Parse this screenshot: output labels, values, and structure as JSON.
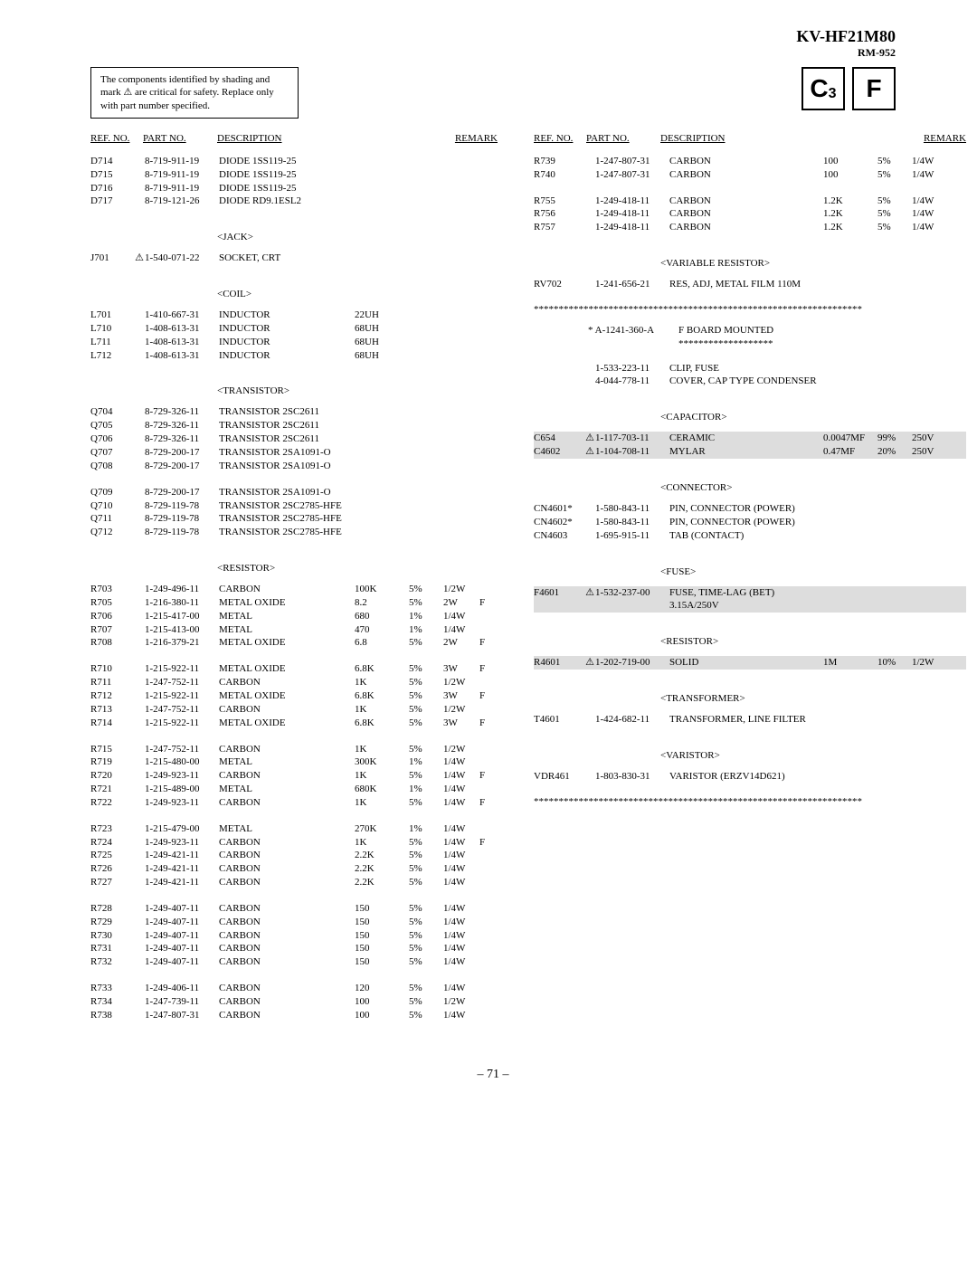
{
  "header": {
    "model": "KV-HF21M80",
    "subtitle": "RM-952"
  },
  "notice": "The components identified by shading and mark ⚠ are critical for safety. Replace only with part number specified.",
  "badges": [
    "C",
    "3",
    "F"
  ],
  "colheads": {
    "ref": "REF. NO.",
    "part": "PART NO.",
    "desc": "DESCRIPTION",
    "remark": "REMARK"
  },
  "page": "– 71 –",
  "warn": "⚠",
  "left": [
    {
      "rows": [
        [
          "D714",
          "",
          "8-719-911-19",
          "DIODE 1SS119-25",
          "",
          "",
          "",
          ""
        ],
        [
          "D715",
          "",
          "8-719-911-19",
          "DIODE 1SS119-25",
          "",
          "",
          "",
          ""
        ],
        [
          "D716",
          "",
          "8-719-911-19",
          "DIODE 1SS119-25",
          "",
          "",
          "",
          ""
        ],
        [
          "D717",
          "",
          "8-719-121-26",
          "DIODE RD9.1ESL2",
          "",
          "",
          "",
          ""
        ]
      ]
    },
    {
      "title": "<JACK>"
    },
    {
      "rows": [
        [
          "J701",
          "⚠",
          "1-540-071-22",
          "SOCKET, CRT",
          "",
          "",
          "",
          ""
        ]
      ]
    },
    {
      "title": "<COIL>"
    },
    {
      "rows": [
        [
          "L701",
          "",
          "1-410-667-31",
          "INDUCTOR",
          "22UH",
          "",
          "",
          ""
        ],
        [
          "L710",
          "",
          "1-408-613-31",
          "INDUCTOR",
          "68UH",
          "",
          "",
          ""
        ],
        [
          "L711",
          "",
          "1-408-613-31",
          "INDUCTOR",
          "68UH",
          "",
          "",
          ""
        ],
        [
          "L712",
          "",
          "1-408-613-31",
          "INDUCTOR",
          "68UH",
          "",
          "",
          ""
        ]
      ]
    },
    {
      "title": "<TRANSISTOR>"
    },
    {
      "rows": [
        [
          "Q704",
          "",
          "8-729-326-11",
          "TRANSISTOR 2SC2611",
          "",
          "",
          "",
          ""
        ],
        [
          "Q705",
          "",
          "8-729-326-11",
          "TRANSISTOR 2SC2611",
          "",
          "",
          "",
          ""
        ],
        [
          "Q706",
          "",
          "8-729-326-11",
          "TRANSISTOR 2SC2611",
          "",
          "",
          "",
          ""
        ],
        [
          "Q707",
          "",
          "8-729-200-17",
          "TRANSISTOR 2SA1091-O",
          "",
          "",
          "",
          ""
        ],
        [
          "Q708",
          "",
          "8-729-200-17",
          "TRANSISTOR 2SA1091-O",
          "",
          "",
          "",
          ""
        ]
      ]
    },
    {
      "rows": [
        [
          "Q709",
          "",
          "8-729-200-17",
          "TRANSISTOR 2SA1091-O",
          "",
          "",
          "",
          ""
        ],
        [
          "Q710",
          "",
          "8-729-119-78",
          "TRANSISTOR 2SC2785-HFE",
          "",
          "",
          "",
          ""
        ],
        [
          "Q711",
          "",
          "8-729-119-78",
          "TRANSISTOR 2SC2785-HFE",
          "",
          "",
          "",
          ""
        ],
        [
          "Q712",
          "",
          "8-729-119-78",
          "TRANSISTOR 2SC2785-HFE",
          "",
          "",
          "",
          ""
        ]
      ]
    },
    {
      "title": "<RESISTOR>"
    },
    {
      "rows": [
        [
          "R703",
          "",
          "1-249-496-11",
          "CARBON",
          "100K",
          "5%",
          "1/2W",
          ""
        ],
        [
          "R705",
          "",
          "1-216-380-11",
          "METAL OXIDE",
          "8.2",
          "5%",
          "2W",
          "F"
        ],
        [
          "R706",
          "",
          "1-215-417-00",
          "METAL",
          "680",
          "1%",
          "1/4W",
          ""
        ],
        [
          "R707",
          "",
          "1-215-413-00",
          "METAL",
          "470",
          "1%",
          "1/4W",
          ""
        ],
        [
          "R708",
          "",
          "1-216-379-21",
          "METAL OXIDE",
          "6.8",
          "5%",
          "2W",
          "F"
        ]
      ]
    },
    {
      "rows": [
        [
          "R710",
          "",
          "1-215-922-11",
          "METAL OXIDE",
          "6.8K",
          "5%",
          "3W",
          "F"
        ],
        [
          "R711",
          "",
          "1-247-752-11",
          "CARBON",
          "1K",
          "5%",
          "1/2W",
          ""
        ],
        [
          "R712",
          "",
          "1-215-922-11",
          "METAL OXIDE",
          "6.8K",
          "5%",
          "3W",
          "F"
        ],
        [
          "R713",
          "",
          "1-247-752-11",
          "CARBON",
          "1K",
          "5%",
          "1/2W",
          ""
        ],
        [
          "R714",
          "",
          "1-215-922-11",
          "METAL OXIDE",
          "6.8K",
          "5%",
          "3W",
          "F"
        ]
      ]
    },
    {
      "rows": [
        [
          "R715",
          "",
          "1-247-752-11",
          "CARBON",
          "1K",
          "5%",
          "1/2W",
          ""
        ],
        [
          "R719",
          "",
          "1-215-480-00",
          "METAL",
          "300K",
          "1%",
          "1/4W",
          ""
        ],
        [
          "R720",
          "",
          "1-249-923-11",
          "CARBON",
          "1K",
          "5%",
          "1/4W",
          "F"
        ],
        [
          "R721",
          "",
          "1-215-489-00",
          "METAL",
          "680K",
          "1%",
          "1/4W",
          ""
        ],
        [
          "R722",
          "",
          "1-249-923-11",
          "CARBON",
          "1K",
          "5%",
          "1/4W",
          "F"
        ]
      ]
    },
    {
      "rows": [
        [
          "R723",
          "",
          "1-215-479-00",
          "METAL",
          "270K",
          "1%",
          "1/4W",
          ""
        ],
        [
          "R724",
          "",
          "1-249-923-11",
          "CARBON",
          "1K",
          "5%",
          "1/4W",
          "F"
        ],
        [
          "R725",
          "",
          "1-249-421-11",
          "CARBON",
          "2.2K",
          "5%",
          "1/4W",
          ""
        ],
        [
          "R726",
          "",
          "1-249-421-11",
          "CARBON",
          "2.2K",
          "5%",
          "1/4W",
          ""
        ],
        [
          "R727",
          "",
          "1-249-421-11",
          "CARBON",
          "2.2K",
          "5%",
          "1/4W",
          ""
        ]
      ]
    },
    {
      "rows": [
        [
          "R728",
          "",
          "1-249-407-11",
          "CARBON",
          "150",
          "5%",
          "1/4W",
          ""
        ],
        [
          "R729",
          "",
          "1-249-407-11",
          "CARBON",
          "150",
          "5%",
          "1/4W",
          ""
        ],
        [
          "R730",
          "",
          "1-249-407-11",
          "CARBON",
          "150",
          "5%",
          "1/4W",
          ""
        ],
        [
          "R731",
          "",
          "1-249-407-11",
          "CARBON",
          "150",
          "5%",
          "1/4W",
          ""
        ],
        [
          "R732",
          "",
          "1-249-407-11",
          "CARBON",
          "150",
          "5%",
          "1/4W",
          ""
        ]
      ]
    },
    {
      "rows": [
        [
          "R733",
          "",
          "1-249-406-11",
          "CARBON",
          "120",
          "5%",
          "1/4W",
          ""
        ],
        [
          "R734",
          "",
          "1-247-739-11",
          "CARBON",
          "100",
          "5%",
          "1/2W",
          ""
        ],
        [
          "R738",
          "",
          "1-247-807-31",
          "CARBON",
          "100",
          "5%",
          "1/4W",
          ""
        ]
      ]
    }
  ],
  "right": [
    {
      "rows": [
        [
          "R739",
          "",
          "1-247-807-31",
          "CARBON",
          "100",
          "5%",
          "1/4W",
          ""
        ],
        [
          "R740",
          "",
          "1-247-807-31",
          "CARBON",
          "100",
          "5%",
          "1/4W",
          ""
        ]
      ]
    },
    {
      "rows": [
        [
          "R755",
          "",
          "1-249-418-11",
          "CARBON",
          "1.2K",
          "5%",
          "1/4W",
          ""
        ],
        [
          "R756",
          "",
          "1-249-418-11",
          "CARBON",
          "1.2K",
          "5%",
          "1/4W",
          ""
        ],
        [
          "R757",
          "",
          "1-249-418-11",
          "CARBON",
          "1.2K",
          "5%",
          "1/4W",
          ""
        ]
      ]
    },
    {
      "title": "<VARIABLE RESISTOR>"
    },
    {
      "rows": [
        [
          "RV702",
          "",
          "1-241-656-21",
          "RES, ADJ, METAL FILM 110M",
          "",
          "",
          "",
          ""
        ]
      ]
    },
    {
      "ast": "******************************************************************"
    },
    {
      "note": [
        "* A-1241-360-A",
        "F BOARD MOUNTED",
        "*******************"
      ]
    },
    {
      "rows": [
        [
          "",
          "",
          "1-533-223-11",
          "CLIP, FUSE",
          "",
          "",
          "",
          ""
        ],
        [
          "",
          "",
          "4-044-778-11",
          "COVER, CAP TYPE CONDENSER",
          "",
          "",
          "",
          ""
        ]
      ]
    },
    {
      "title": "<CAPACITOR>"
    },
    {
      "rows": [
        [
          "C654",
          "⚠",
          "1-117-703-11",
          "CERAMIC",
          "0.0047MF",
          "99%",
          "250V",
          "",
          true
        ],
        [
          "C4602",
          "⚠",
          "1-104-708-11",
          "MYLAR",
          "0.47MF",
          "20%",
          "250V",
          "",
          true
        ]
      ]
    },
    {
      "title": "<CONNECTOR>"
    },
    {
      "rows": [
        [
          "CN4601*",
          "",
          "1-580-843-11",
          "PIN, CONNECTOR (POWER)",
          "",
          "",
          "",
          ""
        ],
        [
          "CN4602*",
          "",
          "1-580-843-11",
          "PIN, CONNECTOR (POWER)",
          "",
          "",
          "",
          ""
        ],
        [
          "CN4603",
          "",
          "1-695-915-11",
          "TAB (CONTACT)",
          "",
          "",
          "",
          ""
        ]
      ]
    },
    {
      "title": "<FUSE>"
    },
    {
      "rows": [
        [
          "F4601",
          "⚠",
          "1-532-237-00",
          "FUSE, TIME-LAG (BET) 3.15A/250V",
          "",
          "",
          "",
          "",
          true
        ]
      ]
    },
    {
      "title": "<RESISTOR>"
    },
    {
      "rows": [
        [
          "R4601",
          "⚠",
          "1-202-719-00",
          "SOLID",
          "1M",
          "10%",
          "1/2W",
          "",
          true
        ]
      ]
    },
    {
      "title": "<TRANSFORMER>"
    },
    {
      "rows": [
        [
          "T4601",
          "",
          "1-424-682-11",
          "TRANSFORMER, LINE FILTER",
          "",
          "",
          "",
          ""
        ]
      ]
    },
    {
      "title": "<VARISTOR>"
    },
    {
      "rows": [
        [
          "VDR461",
          "",
          "1-803-830-31",
          "VARISTOR (ERZV14D621)",
          "",
          "",
          "",
          ""
        ]
      ]
    },
    {
      "ast": "******************************************************************"
    }
  ]
}
